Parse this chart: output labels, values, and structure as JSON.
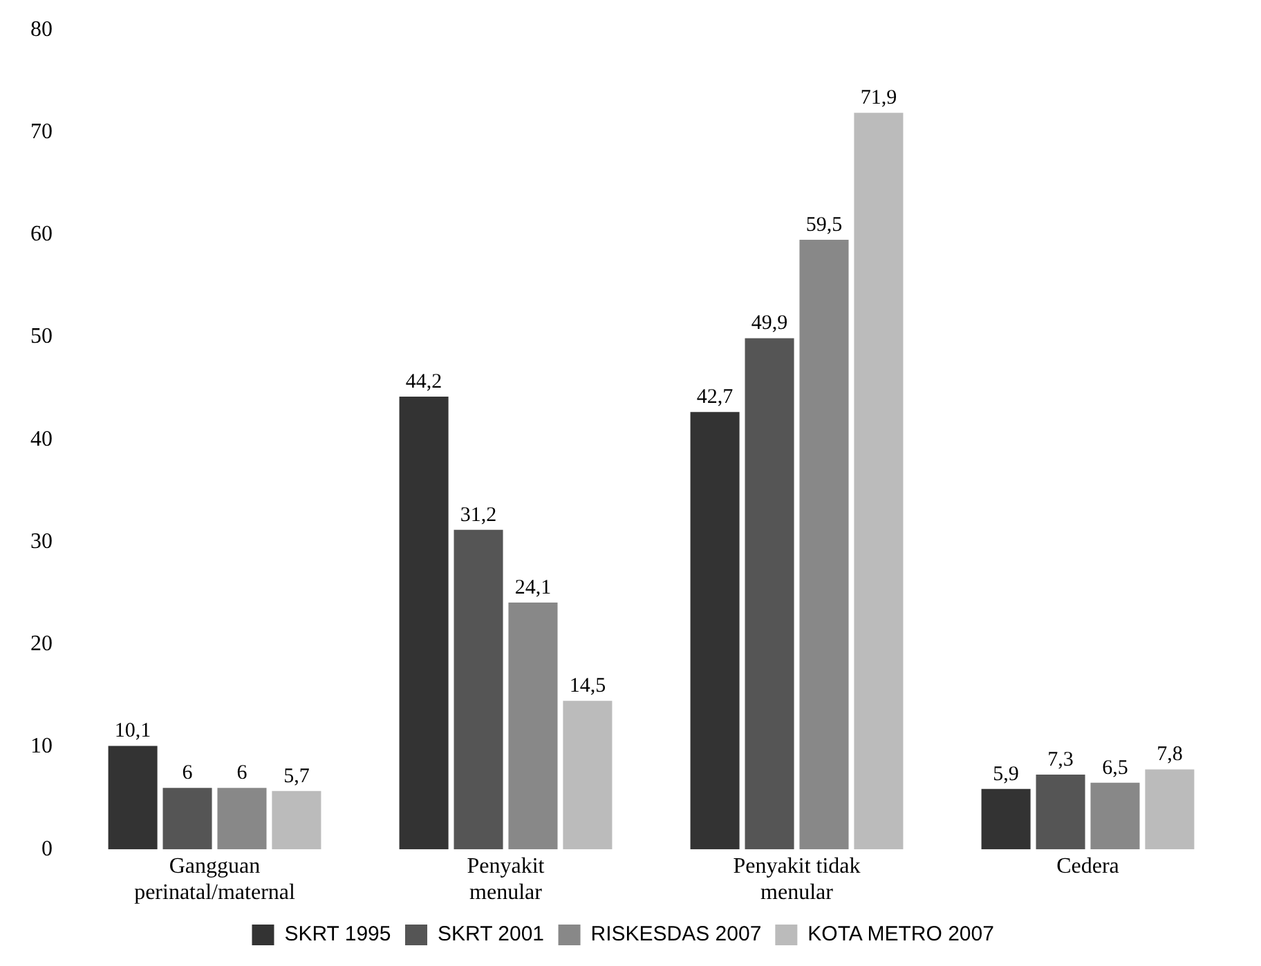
{
  "chart_data": {
    "type": "bar",
    "categories": [
      "Gangguan perinatal/maternal",
      "Penyakit menular",
      "Penyakit tidak menular",
      "Cedera"
    ],
    "series": [
      {
        "name": "SKRT 1995",
        "color": "#333333",
        "values": [
          10.1,
          44.2,
          42.7,
          5.9
        ],
        "value_labels": [
          "10,1",
          "44,2",
          "42,7",
          "5,9"
        ]
      },
      {
        "name": "SKRT 2001",
        "color": "#555555",
        "values": [
          6,
          31.2,
          49.9,
          7.3
        ],
        "value_labels": [
          "6",
          "31,2",
          "49,9",
          "7,3"
        ]
      },
      {
        "name": "RISKESDAS 2007",
        "color": "#888888",
        "values": [
          6,
          24.1,
          59.5,
          6.5
        ],
        "value_labels": [
          "6",
          "24,1",
          "59,5",
          "6,5"
        ]
      },
      {
        "name": "KOTA METRO 2007",
        "color": "#bbbbbb",
        "values": [
          5.7,
          14.5,
          71.9,
          7.8
        ],
        "value_labels": [
          "5,7",
          "14,5",
          "71,9",
          "7,8"
        ]
      }
    ],
    "ylim": [
      0,
      80
    ],
    "yticks": [
      0,
      10,
      20,
      30,
      40,
      50,
      60,
      70,
      80
    ],
    "grid": false,
    "legend": "bottom"
  }
}
